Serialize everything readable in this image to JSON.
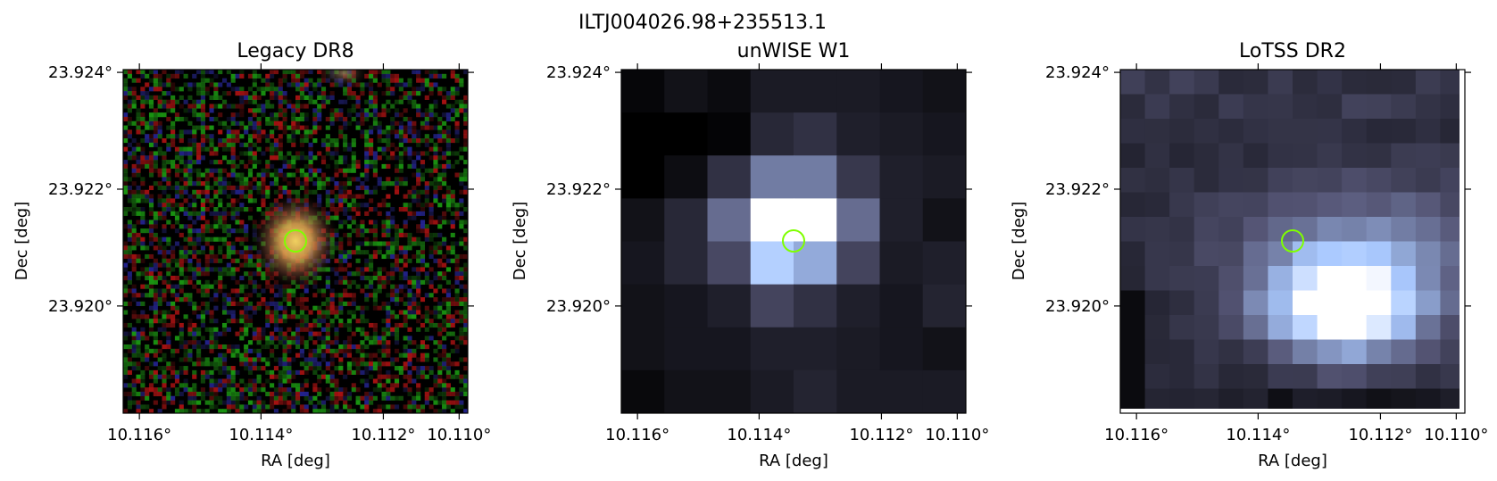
{
  "figure": {
    "title": "ILTJ004026.98+235513.1"
  },
  "panels": [
    {
      "title": "Legacy DR8",
      "xlabel": "RA [deg]",
      "ylabel": "Dec [deg]",
      "xticks": [
        "10.116°",
        "10.114°",
        "10.112°",
        "10.110°"
      ],
      "yticks": [
        "23.924°",
        "23.922°",
        "23.920°"
      ],
      "image": "rgb-optical-cutout"
    },
    {
      "title": "unWISE W1",
      "xlabel": "RA [deg]",
      "ylabel": "Dec [deg]",
      "xticks": [
        "10.116°",
        "10.114°",
        "10.112°",
        "10.110°"
      ],
      "yticks": [
        "23.924°",
        "23.922°",
        "23.920°"
      ],
      "image": "bone-colormap-cutout"
    },
    {
      "title": "LoTSS DR2",
      "xlabel": "RA [deg]",
      "ylabel": "Dec [deg]",
      "xticks": [
        "10.116°",
        "10.114°",
        "10.112°",
        "10.110°"
      ],
      "yticks": [
        "23.924°",
        "23.922°",
        "23.920°"
      ],
      "image": "bone-colormap-cutout"
    }
  ],
  "marker": {
    "shape": "circle",
    "color": "#7fff00"
  }
}
